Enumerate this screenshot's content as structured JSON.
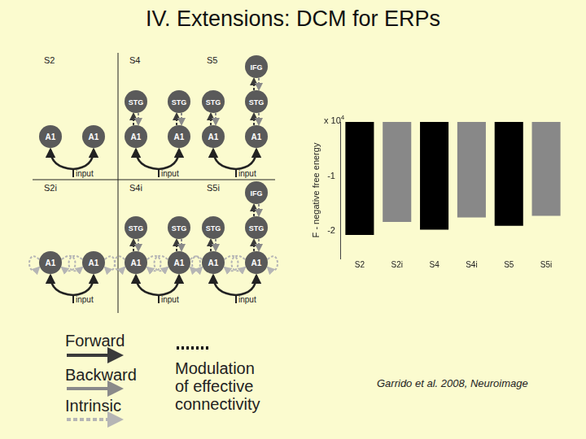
{
  "title": "IV. Extensions: DCM for ERPs",
  "diagram": {
    "panels": [
      {
        "label": "S2",
        "columns": [
          [
            "A1"
          ],
          [
            "A1"
          ]
        ],
        "input": "input",
        "intrinsic": false
      },
      {
        "label": "S4",
        "columns": [
          [
            "A1",
            "STG"
          ],
          [
            "A1",
            "STG"
          ]
        ],
        "input": "input",
        "intrinsic": false
      },
      {
        "label": "S5",
        "columns": [
          [
            "A1",
            "STG"
          ],
          [
            "A1",
            "STG",
            "IFG"
          ]
        ],
        "input": "input",
        "intrinsic": false
      },
      {
        "label": "S2i",
        "columns": [
          [
            "A1"
          ],
          [
            "A1"
          ]
        ],
        "input": "input",
        "intrinsic": true
      },
      {
        "label": "S4i",
        "columns": [
          [
            "A1",
            "STG"
          ],
          [
            "A1",
            "STG"
          ]
        ],
        "input": "input",
        "intrinsic": true
      },
      {
        "label": "S5i",
        "columns": [
          [
            "A1",
            "STG"
          ],
          [
            "A1",
            "STG",
            "IFG"
          ]
        ],
        "input": "input",
        "intrinsic": true
      }
    ],
    "legend": {
      "forward": "Forward",
      "backward": "Backward",
      "intrinsic": "Intrinsic",
      "modulation": "Modulation of effective connectivity"
    }
  },
  "citation": "Garrido et al. 2008, Neuroimage",
  "chart_data": {
    "type": "bar",
    "y_label": "F - negative free energy",
    "y_multiplier": {
      "base": "x 10",
      "exponent": "4"
    },
    "categories": [
      "S2",
      "S2i",
      "S4",
      "S4i",
      "S5",
      "S5i"
    ],
    "values": [
      -2.07,
      -1.83,
      -1.97,
      -1.75,
      -1.9,
      -1.72
    ],
    "colors": [
      "#000000",
      "#888888",
      "#000000",
      "#888888",
      "#000000",
      "#888888"
    ],
    "ylim": [
      -2.5,
      0
    ],
    "yticks": [
      -2,
      -1
    ],
    "grid": false
  }
}
